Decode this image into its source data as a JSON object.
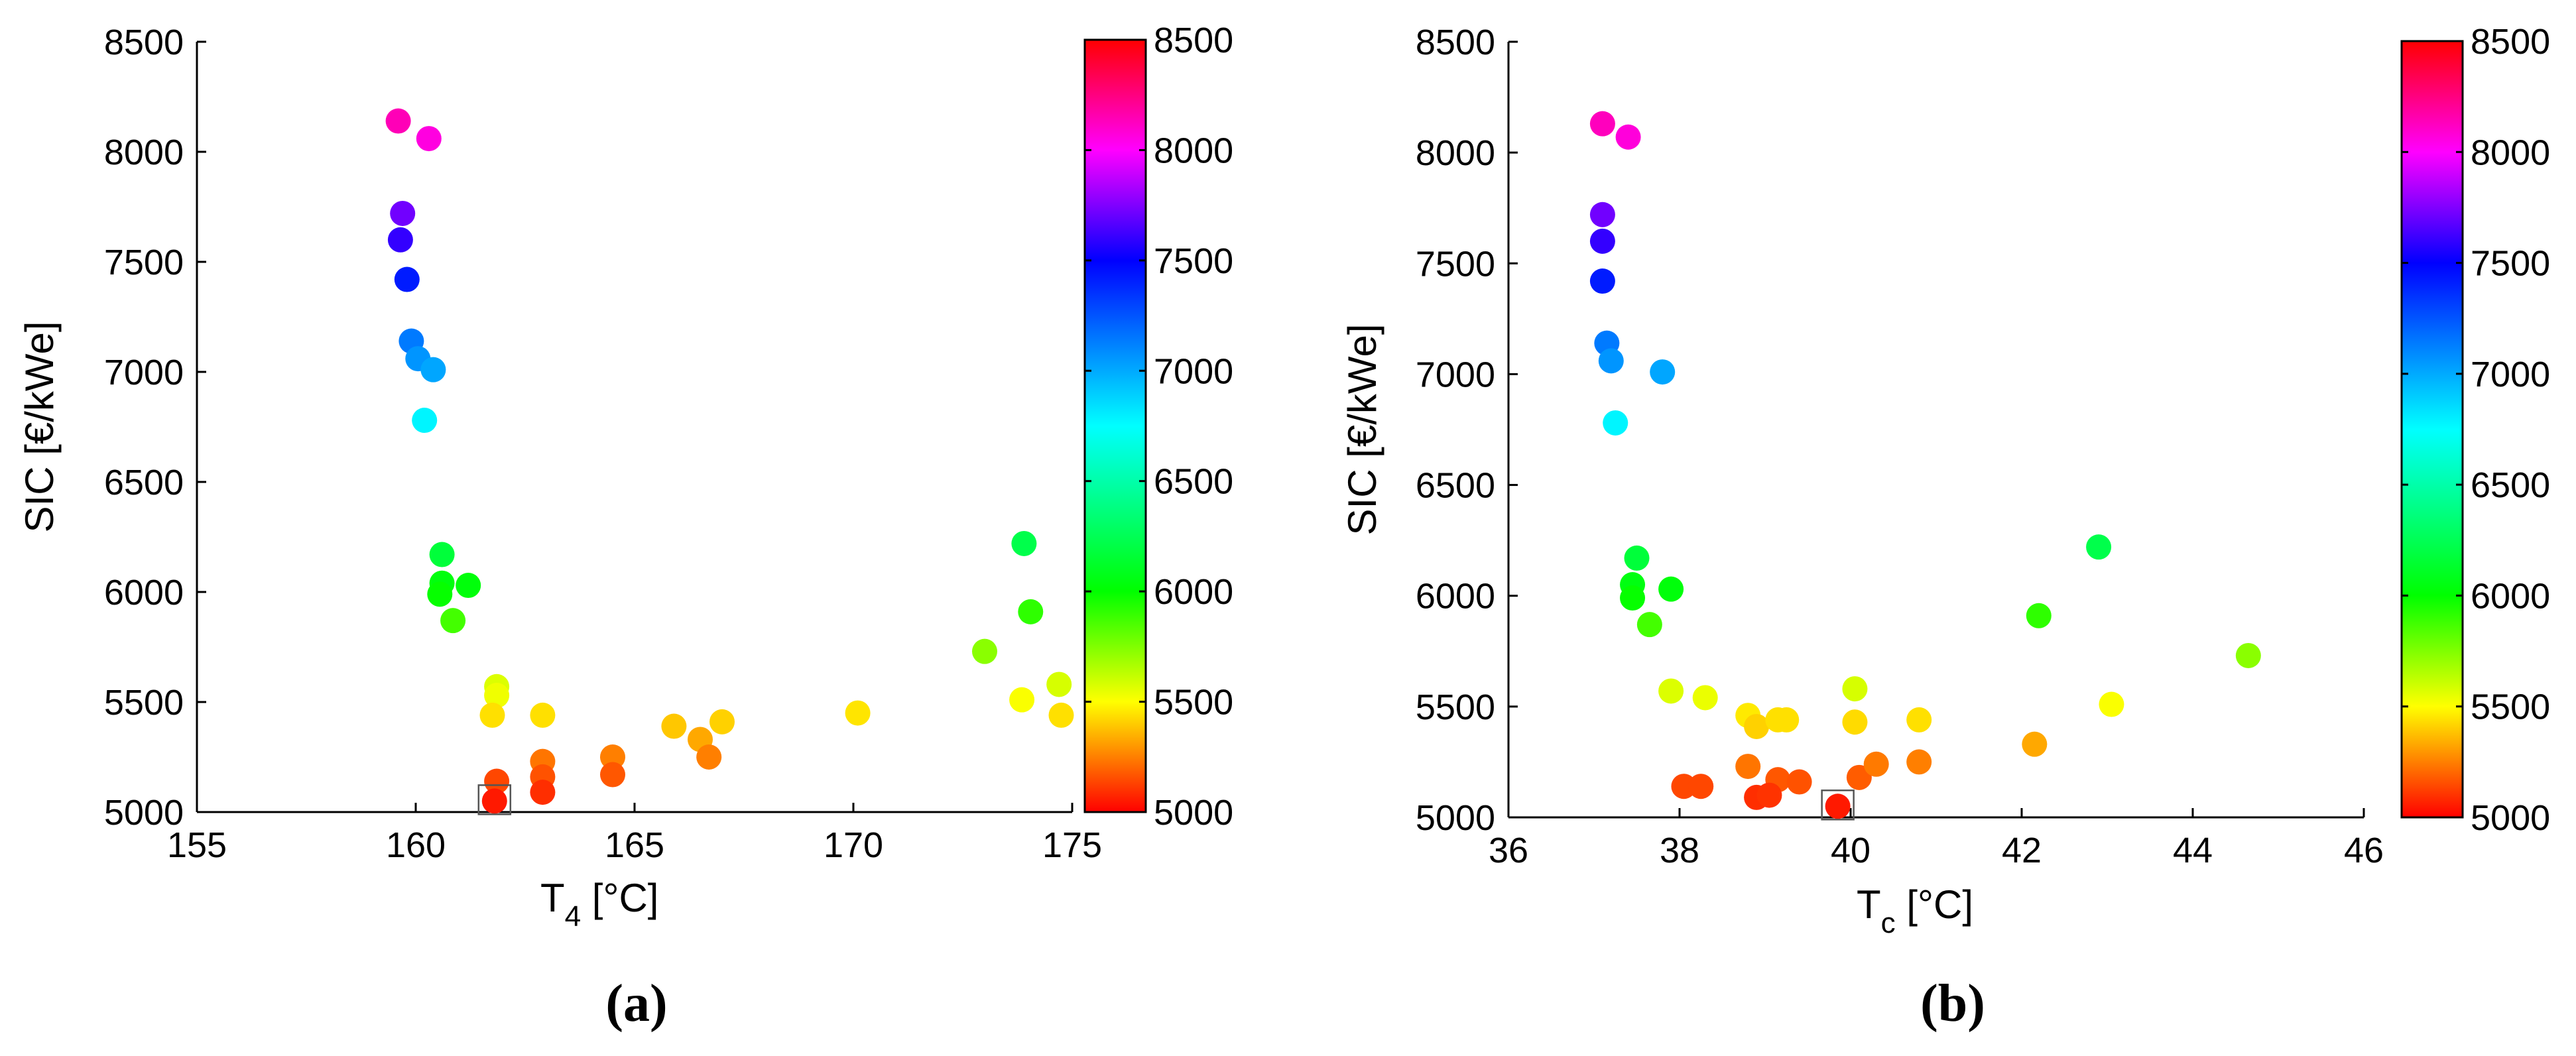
{
  "chart_data": [
    {
      "type": "scatter",
      "panel": "(a)",
      "xlabel_base": "T",
      "xlabel_sub": "4",
      "xlabel_tail": " [°C]",
      "ylabel": "SIC [€/kWe]",
      "xlim": [
        155,
        175
      ],
      "ylim": [
        5000,
        8500
      ],
      "xticks": [
        "155",
        "160",
        "165",
        "170",
        "175"
      ],
      "yticks": [
        "5000",
        "5500",
        "6000",
        "6500",
        "7000",
        "7500",
        "8000",
        "8500"
      ],
      "colorbar": {
        "range": [
          5000,
          8500
        ],
        "ticks": [
          "5000",
          "5500",
          "6000",
          "6500",
          "7000",
          "7500",
          "8000",
          "8500"
        ]
      },
      "highlight": {
        "x": 161.8,
        "y": 5050
      },
      "points": [
        {
          "x": 159.6,
          "y": 8140
        },
        {
          "x": 160.3,
          "y": 8060
        },
        {
          "x": 159.7,
          "y": 7720
        },
        {
          "x": 159.65,
          "y": 7600
        },
        {
          "x": 159.8,
          "y": 7420
        },
        {
          "x": 159.9,
          "y": 7140
        },
        {
          "x": 160.05,
          "y": 7060
        },
        {
          "x": 160.4,
          "y": 7010
        },
        {
          "x": 160.2,
          "y": 6780
        },
        {
          "x": 160.6,
          "y": 6170
        },
        {
          "x": 160.6,
          "y": 6040
        },
        {
          "x": 161.2,
          "y": 6030
        },
        {
          "x": 160.55,
          "y": 5990
        },
        {
          "x": 160.85,
          "y": 5870
        },
        {
          "x": 161.85,
          "y": 5570
        },
        {
          "x": 161.85,
          "y": 5530
        },
        {
          "x": 161.75,
          "y": 5440
        },
        {
          "x": 162.9,
          "y": 5440
        },
        {
          "x": 162.9,
          "y": 5230
        },
        {
          "x": 162.9,
          "y": 5160
        },
        {
          "x": 161.85,
          "y": 5140
        },
        {
          "x": 162.9,
          "y": 5090
        },
        {
          "x": 161.8,
          "y": 5050
        },
        {
          "x": 164.5,
          "y": 5250
        },
        {
          "x": 164.5,
          "y": 5170
        },
        {
          "x": 165.9,
          "y": 5390
        },
        {
          "x": 166.5,
          "y": 5330
        },
        {
          "x": 166.7,
          "y": 5250
        },
        {
          "x": 167.0,
          "y": 5410
        },
        {
          "x": 170.1,
          "y": 5450
        },
        {
          "x": 173.0,
          "y": 5730
        },
        {
          "x": 173.85,
          "y": 5510
        },
        {
          "x": 173.9,
          "y": 6220
        },
        {
          "x": 174.05,
          "y": 5910
        },
        {
          "x": 174.7,
          "y": 5580
        },
        {
          "x": 174.75,
          "y": 5440
        }
      ]
    },
    {
      "type": "scatter",
      "panel": "(b)",
      "xlabel_base": "T",
      "xlabel_sub": "c",
      "xlabel_tail": " [°C]",
      "ylabel": "SIC [€/kWe]",
      "xlim": [
        36,
        46
      ],
      "ylim": [
        5000,
        8500
      ],
      "xticks": [
        "36",
        "38",
        "40",
        "42",
        "44",
        "46"
      ],
      "yticks": [
        "5000",
        "5500",
        "6000",
        "6500",
        "7000",
        "7500",
        "8000",
        "8500"
      ],
      "colorbar": {
        "range": [
          5000,
          8500
        ],
        "ticks": [
          "5000",
          "5500",
          "6000",
          "6500",
          "7000",
          "7500",
          "8000",
          "8500"
        ]
      },
      "highlight": {
        "x": 39.85,
        "y": 5050
      },
      "points": [
        {
          "x": 37.1,
          "y": 8130
        },
        {
          "x": 37.4,
          "y": 8070
        },
        {
          "x": 37.1,
          "y": 7720
        },
        {
          "x": 37.1,
          "y": 7600
        },
        {
          "x": 37.1,
          "y": 7420
        },
        {
          "x": 37.15,
          "y": 7140
        },
        {
          "x": 37.2,
          "y": 7060
        },
        {
          "x": 37.8,
          "y": 7010
        },
        {
          "x": 37.25,
          "y": 6780
        },
        {
          "x": 37.5,
          "y": 6170
        },
        {
          "x": 37.45,
          "y": 6050
        },
        {
          "x": 37.45,
          "y": 5990
        },
        {
          "x": 37.9,
          "y": 6030
        },
        {
          "x": 37.65,
          "y": 5870
        },
        {
          "x": 37.9,
          "y": 5570
        },
        {
          "x": 38.3,
          "y": 5540
        },
        {
          "x": 38.05,
          "y": 5140
        },
        {
          "x": 38.25,
          "y": 5140
        },
        {
          "x": 38.8,
          "y": 5460
        },
        {
          "x": 38.9,
          "y": 5410
        },
        {
          "x": 39.15,
          "y": 5440
        },
        {
          "x": 39.25,
          "y": 5440
        },
        {
          "x": 38.8,
          "y": 5230
        },
        {
          "x": 39.15,
          "y": 5170
        },
        {
          "x": 39.4,
          "y": 5160
        },
        {
          "x": 38.9,
          "y": 5090
        },
        {
          "x": 39.05,
          "y": 5100
        },
        {
          "x": 39.85,
          "y": 5050
        },
        {
          "x": 40.05,
          "y": 5580
        },
        {
          "x": 40.05,
          "y": 5430
        },
        {
          "x": 40.1,
          "y": 5180
        },
        {
          "x": 40.3,
          "y": 5240
        },
        {
          "x": 40.8,
          "y": 5440
        },
        {
          "x": 40.8,
          "y": 5250
        },
        {
          "x": 42.15,
          "y": 5330
        },
        {
          "x": 42.2,
          "y": 5910
        },
        {
          "x": 42.9,
          "y": 6220
        },
        {
          "x": 43.05,
          "y": 5510
        },
        {
          "x": 44.65,
          "y": 5730
        }
      ]
    }
  ]
}
